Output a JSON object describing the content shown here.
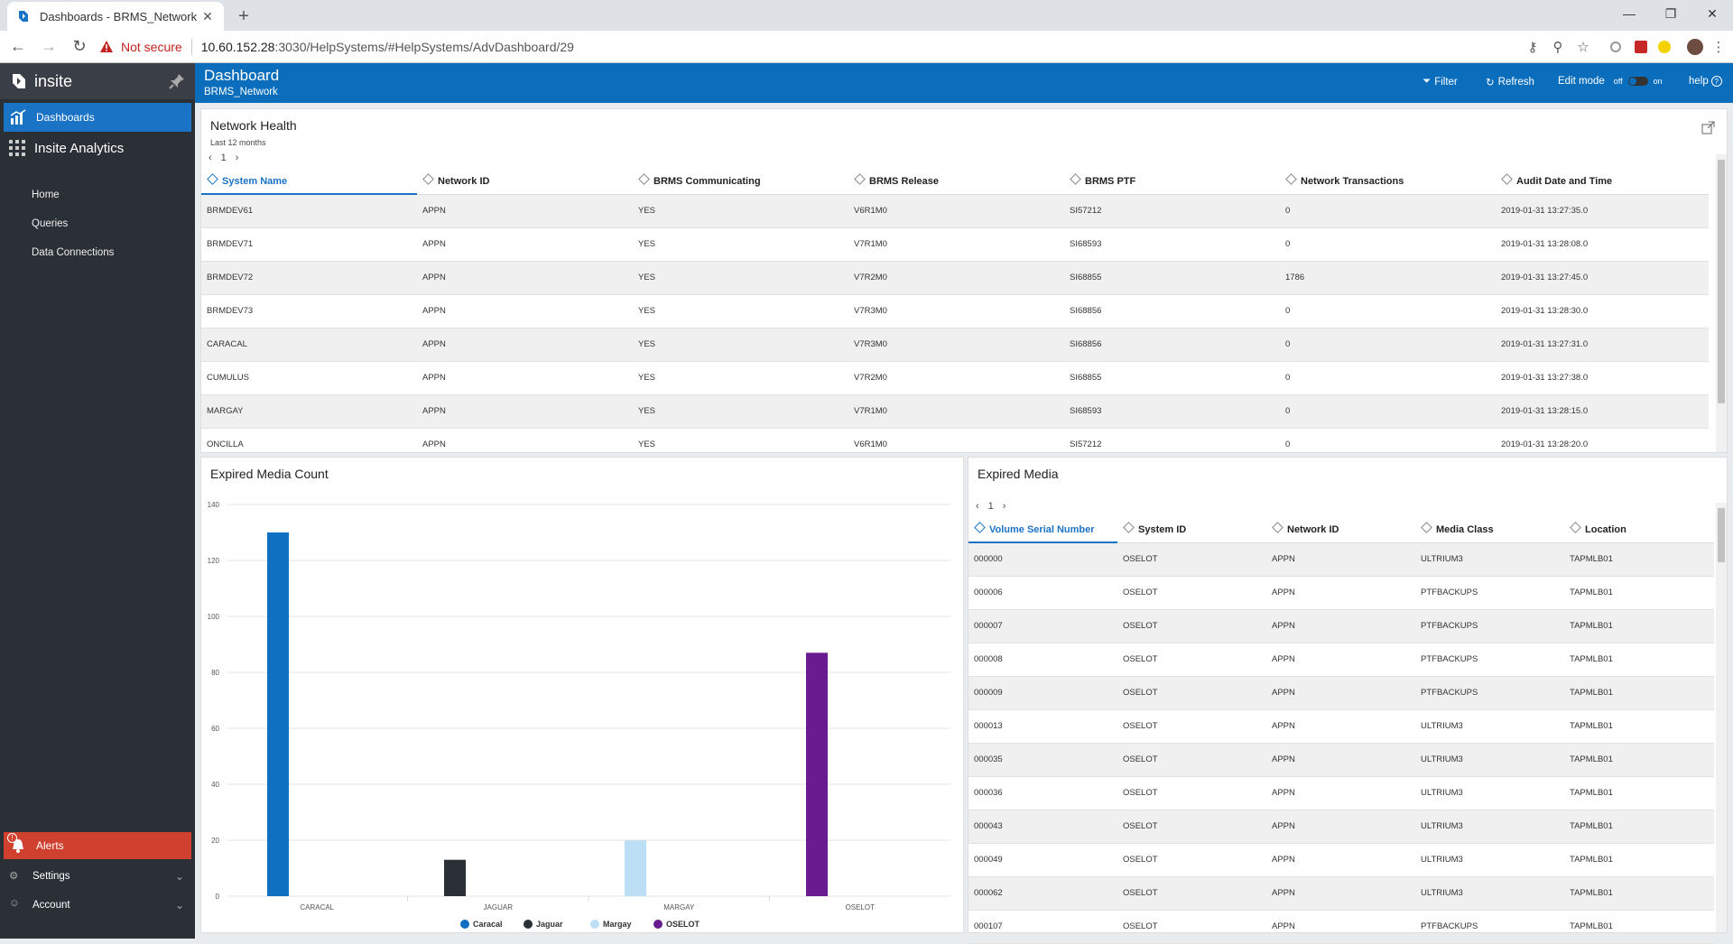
{
  "browser": {
    "tab_title": "Dashboards - BRMS_Network",
    "security_label": "Not secure",
    "url_host": "10.60.152.28",
    "url_rest": ":3030/HelpSystems/#HelpSystems/AdvDashboard/29"
  },
  "sidebar": {
    "brand": "insite",
    "active_item": "Dashboards",
    "section": "Insite Analytics",
    "items": [
      "Home",
      "Queries",
      "Data Connections"
    ],
    "alerts_label": "Alerts",
    "alerts_count": "!",
    "settings_label": "Settings",
    "account_label": "Account"
  },
  "header": {
    "title": "Dashboard",
    "subtitle": "BRMS_Network",
    "filter_label": "Filter",
    "refresh_label": "Refresh",
    "edit_mode_label": "Edit mode",
    "toggle_off": "off",
    "toggle_on": "on",
    "help_label": "help"
  },
  "network_health": {
    "title": "Network Health",
    "subtitle": "Last 12 months",
    "page": "1",
    "columns": [
      "System Name",
      "Network ID",
      "BRMS Communicating",
      "BRMS Release",
      "BRMS PTF",
      "Network Transactions",
      "Audit Date and Time"
    ],
    "rows": [
      [
        "BRMDEV61",
        "APPN",
        "YES",
        "V6R1M0",
        "SI57212",
        "0",
        "2019-01-31 13:27:35.0"
      ],
      [
        "BRMDEV71",
        "APPN",
        "YES",
        "V7R1M0",
        "SI68593",
        "0",
        "2019-01-31 13:28:08.0"
      ],
      [
        "BRMDEV72",
        "APPN",
        "YES",
        "V7R2M0",
        "SI68855",
        "1786",
        "2019-01-31 13:27:45.0"
      ],
      [
        "BRMDEV73",
        "APPN",
        "YES",
        "V7R3M0",
        "SI68856",
        "0",
        "2019-01-31 13:28:30.0"
      ],
      [
        "CARACAL",
        "APPN",
        "YES",
        "V7R3M0",
        "SI68856",
        "0",
        "2019-01-31 13:27:31.0"
      ],
      [
        "CUMULUS",
        "APPN",
        "YES",
        "V7R2M0",
        "SI68855",
        "0",
        "2019-01-31 13:27:38.0"
      ],
      [
        "MARGAY",
        "APPN",
        "YES",
        "V7R1M0",
        "SI68593",
        "0",
        "2019-01-31 13:28:15.0"
      ],
      [
        "ONCILLA",
        "APPN",
        "YES",
        "V6R1M0",
        "SI57212",
        "0",
        "2019-01-31 13:28:20.0"
      ]
    ]
  },
  "expired_media": {
    "title": "Expired Media",
    "page": "1",
    "columns": [
      "Volume Serial Number",
      "System ID",
      "Network ID",
      "Media Class",
      "Location"
    ],
    "rows": [
      [
        "000000",
        "OSELOT",
        "APPN",
        "ULTRIUM3",
        "TAPMLB01"
      ],
      [
        "000006",
        "OSELOT",
        "APPN",
        "PTFBACKUPS",
        "TAPMLB01"
      ],
      [
        "000007",
        "OSELOT",
        "APPN",
        "PTFBACKUPS",
        "TAPMLB01"
      ],
      [
        "000008",
        "OSELOT",
        "APPN",
        "PTFBACKUPS",
        "TAPMLB01"
      ],
      [
        "000009",
        "OSELOT",
        "APPN",
        "PTFBACKUPS",
        "TAPMLB01"
      ],
      [
        "000013",
        "OSELOT",
        "APPN",
        "ULTRIUM3",
        "TAPMLB01"
      ],
      [
        "000035",
        "OSELOT",
        "APPN",
        "ULTRIUM3",
        "TAPMLB01"
      ],
      [
        "000036",
        "OSELOT",
        "APPN",
        "ULTRIUM3",
        "TAPMLB01"
      ],
      [
        "000043",
        "OSELOT",
        "APPN",
        "ULTRIUM3",
        "TAPMLB01"
      ],
      [
        "000049",
        "OSELOT",
        "APPN",
        "ULTRIUM3",
        "TAPMLB01"
      ],
      [
        "000062",
        "OSELOT",
        "APPN",
        "ULTRIUM3",
        "TAPMLB01"
      ],
      [
        "000107",
        "OSELOT",
        "APPN",
        "PTFBACKUPS",
        "TAPMLB01"
      ]
    ]
  },
  "chart_panel": {
    "title": "Expired Media Count"
  },
  "chart_data": {
    "type": "bar",
    "title": "Expired Media Count",
    "categories": [
      "CARACAL",
      "JAGUAR",
      "MARGAY",
      "OSELOT"
    ],
    "series": [
      {
        "name": "Caracal",
        "color": "#0f6fc0",
        "values": [
          130,
          0,
          0,
          0
        ]
      },
      {
        "name": "Jaguar",
        "color": "#2b2f36",
        "values": [
          0,
          13,
          0,
          0
        ]
      },
      {
        "name": "Margay",
        "color": "#bcdff5",
        "values": [
          0,
          0,
          20,
          0
        ]
      },
      {
        "name": "OSELOT",
        "color": "#6a1b8f",
        "values": [
          0,
          0,
          0,
          87
        ]
      }
    ],
    "yticks": [
      0,
      20,
      40,
      60,
      80,
      100,
      120,
      140
    ],
    "ylim": [
      0,
      140
    ],
    "grid": true,
    "legend": "bottom"
  }
}
